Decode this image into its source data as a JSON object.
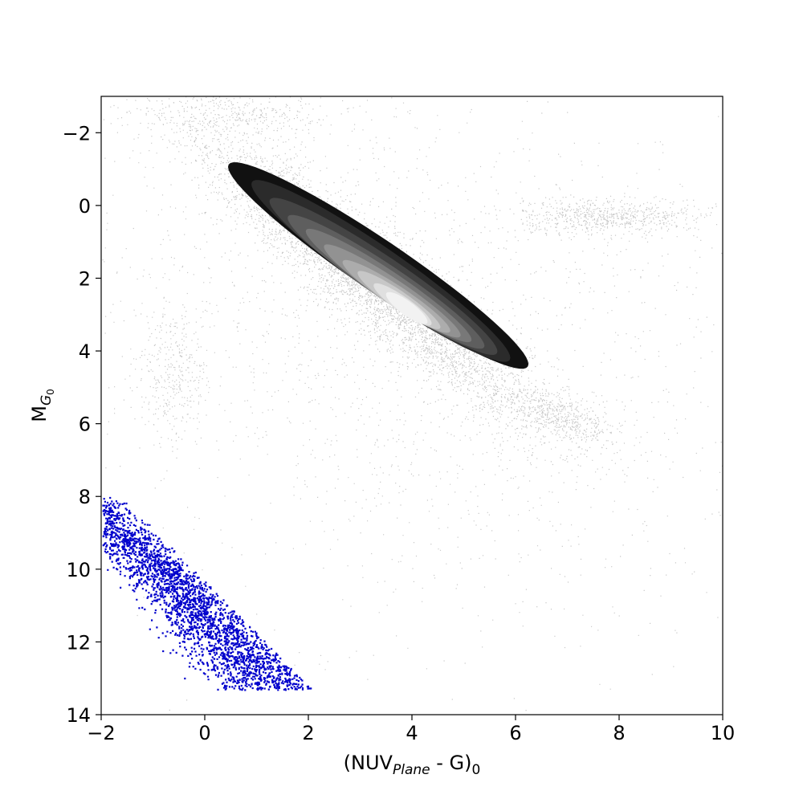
{
  "chart_data": {
    "type": "scatter",
    "title": "",
    "xlabel": {
      "main": "(NUV",
      "sub": "Plane",
      "tail": " - G)",
      "sub2": "0"
    },
    "ylabel": {
      "main": "M",
      "sub": "G",
      "subsub": "0"
    },
    "xlim": [
      -2,
      10
    ],
    "ylim": [
      14,
      -3
    ],
    "y_inverted": true,
    "grid": false,
    "legend": "none",
    "x_ticks": [
      -2,
      0,
      2,
      4,
      6,
      8,
      10
    ],
    "y_ticks": [
      -2,
      0,
      2,
      4,
      6,
      8,
      10,
      12,
      14
    ],
    "x_tick_labels": [
      "−2",
      "0",
      "2",
      "4",
      "6",
      "8",
      "10"
    ],
    "y_tick_labels": [
      "−2",
      "0",
      "2",
      "4",
      "6",
      "8",
      "10",
      "12",
      "14"
    ],
    "series": [
      {
        "kind": "background-density",
        "color": "#000000",
        "components": [
          {
            "cx": 3.2,
            "cy": 2.0,
            "sx": 1.6,
            "sy": 1.9,
            "corr": 0.93,
            "weight": 0.55
          },
          {
            "cx": 7.8,
            "cy": 0.3,
            "sx": 0.9,
            "sy": 0.25,
            "corr": 0.0,
            "weight": 0.08
          },
          {
            "cx": 6.9,
            "cy": 5.8,
            "sx": 0.5,
            "sy": 0.35,
            "corr": 0.5,
            "weight": 0.05
          },
          {
            "cx": -0.6,
            "cy": 4.7,
            "sx": 0.35,
            "sy": 1.0,
            "corr": 0.0,
            "weight": 0.04
          },
          {
            "cx": 0.5,
            "cy": -2.5,
            "sx": 1.0,
            "sy": 0.4,
            "corr": 0.0,
            "weight": 0.05
          },
          {
            "cx": 4.0,
            "cy": 3.5,
            "sx": 3.5,
            "sy": 4.0,
            "corr": 0.3,
            "weight": 0.23
          }
        ]
      },
      {
        "kind": "density-contours",
        "levels": [
          {
            "fill": "#111111",
            "cx": 3.35,
            "cy": 1.65,
            "sx": 1.45,
            "sy": 1.42,
            "corr": 0.955
          },
          {
            "fill": "#2b2b2b",
            "cx": 3.4,
            "cy": 1.8,
            "sx": 1.25,
            "sy": 1.25,
            "corr": 0.955
          },
          {
            "fill": "#444444",
            "cx": 3.45,
            "cy": 1.95,
            "sx": 1.1,
            "sy": 1.08,
            "corr": 0.955
          },
          {
            "fill": "#5e5e5e",
            "cx": 3.5,
            "cy": 2.1,
            "sx": 0.95,
            "sy": 0.92,
            "corr": 0.955
          },
          {
            "fill": "#787878",
            "cx": 3.55,
            "cy": 2.2,
            "sx": 0.8,
            "sy": 0.78,
            "corr": 0.955
          },
          {
            "fill": "#929292",
            "cx": 3.62,
            "cy": 2.35,
            "sx": 0.66,
            "sy": 0.64,
            "corr": 0.95
          },
          {
            "fill": "#acacac",
            "cx": 3.7,
            "cy": 2.5,
            "sx": 0.52,
            "sy": 0.5,
            "corr": 0.94
          },
          {
            "fill": "#c7c7c7",
            "cx": 3.75,
            "cy": 2.6,
            "sx": 0.4,
            "sy": 0.4,
            "corr": 0.93
          },
          {
            "fill": "#e0e0e0",
            "cx": 3.82,
            "cy": 2.72,
            "sx": 0.28,
            "sy": 0.29,
            "corr": 0.9
          },
          {
            "fill": "#f2f2f2",
            "cx": 3.9,
            "cy": 2.82,
            "sx": 0.2,
            "sy": 0.22,
            "corr": 0.85
          }
        ],
        "clip_ymin": -2
      },
      {
        "kind": "selected-points",
        "color": "#0000cc",
        "region": "triangle: x >= -2, y >= 8, y <= 13.3, y >= 11.35 + 1.4*x - 0.8 and upper-right edge from (-1.6, 8) to (2, 13.2)",
        "trend": {
          "x_at_y10": -0.9,
          "slope_dy_dx": 0.78
        }
      }
    ]
  }
}
